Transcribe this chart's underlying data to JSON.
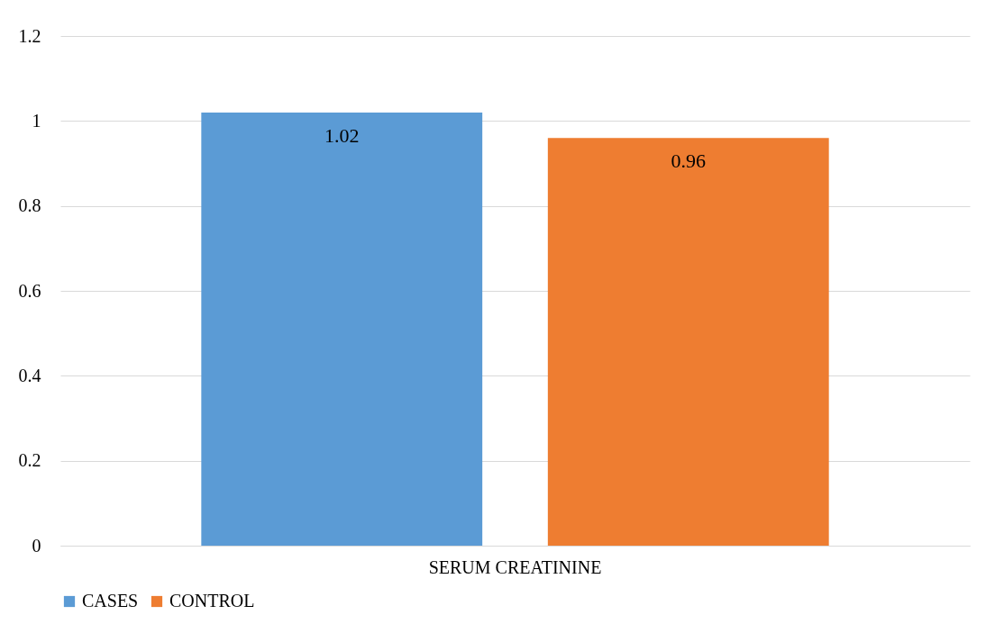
{
  "chart_data": {
    "type": "bar",
    "categories": [
      "SERUM CREATININE"
    ],
    "series": [
      {
        "name": "CASES",
        "color": "#5b9bd5",
        "values": [
          1.02
        ]
      },
      {
        "name": "CONTROL",
        "color": "#ee7d31",
        "values": [
          0.96
        ]
      }
    ],
    "ylim": [
      0,
      1.2
    ],
    "yticks": [
      0,
      0.2,
      0.4,
      0.6,
      0.8,
      1,
      1.2
    ],
    "grid": "y",
    "legend": "bottom",
    "data_labels": true
  }
}
